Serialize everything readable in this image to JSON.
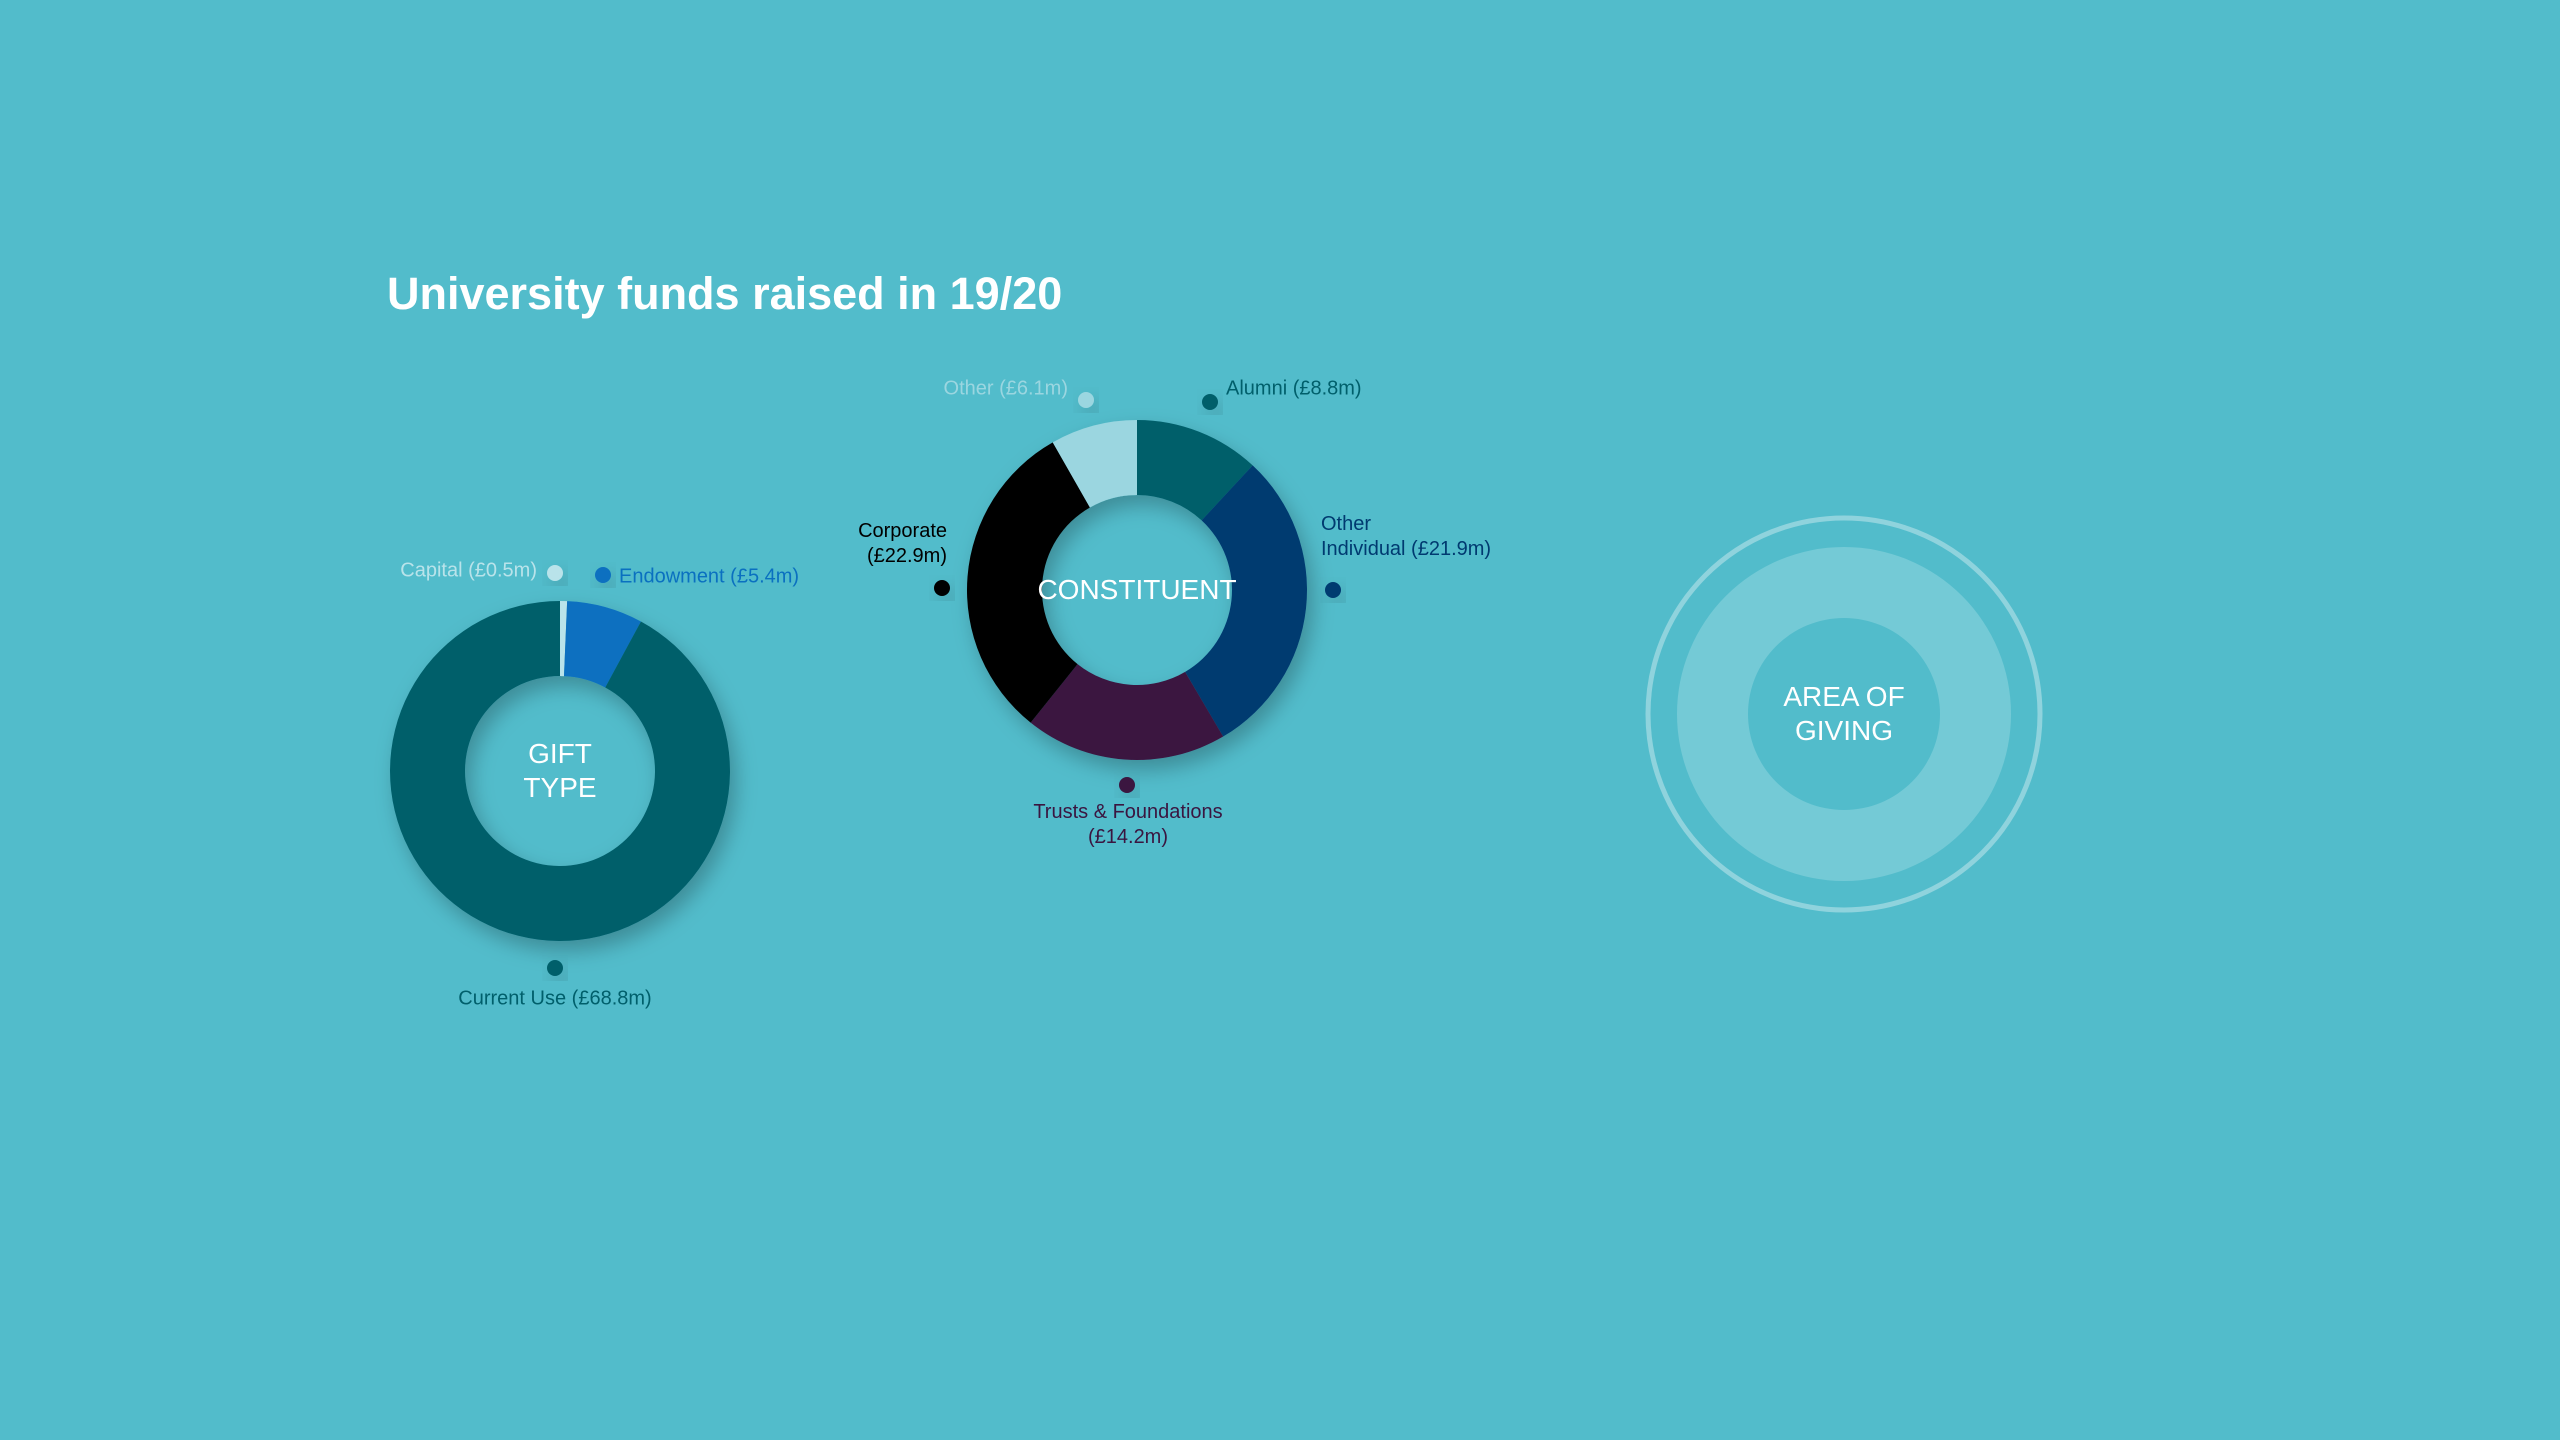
{
  "title": "University funds raised in 19/20",
  "chart_data": [
    {
      "type": "donut",
      "center_label": "GIFT\nTYPE",
      "categories": [
        "Capital (£0.5m)",
        "Endowment (£5.4m)",
        "Current Use (£68.8m)"
      ],
      "values": [
        0.5,
        5.4,
        68.8
      ],
      "colors": [
        "#b9e3ea",
        "#0a70c0",
        "#005f6b"
      ]
    },
    {
      "type": "donut",
      "center_label": "CONSTITUENT",
      "categories": [
        "Alumni (£8.8m)",
        "Other\nIndividual (£21.9m)",
        "Trusts & Foundations\n(£14.2m)",
        "Corporate\n(£22.9m)",
        "Other (£6.1m)"
      ],
      "values": [
        8.8,
        21.9,
        14.2,
        22.9,
        6.1
      ],
      "colors": [
        "#005f6b",
        "#003a70",
        "#3a1540",
        "#000000",
        "#9bd6e0"
      ]
    },
    {
      "type": "donut",
      "center_label": "AREA OF\nGIVING",
      "categories": [],
      "values": [],
      "colors": []
    }
  ]
}
